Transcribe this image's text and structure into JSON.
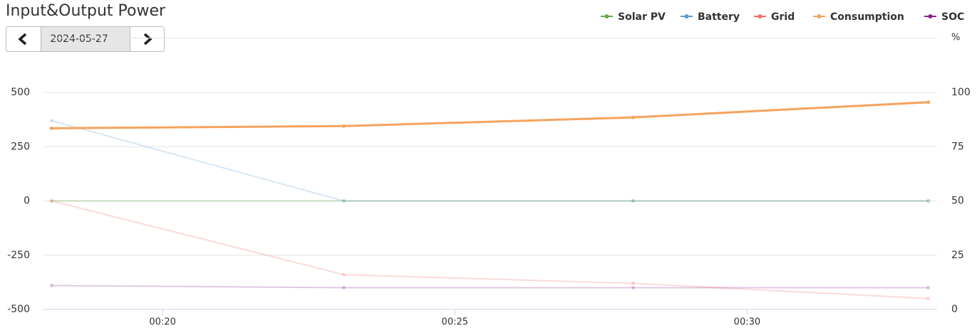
{
  "chart_data": {
    "type": "line",
    "title": "Input&Output Power",
    "date": "2024-05-27",
    "x": [
      18.1,
      23.1,
      28.05,
      33.1
    ],
    "xlim": [
      17.95,
      33.25
    ],
    "xticks": [
      {
        "value": 20,
        "label": "00:20"
      },
      {
        "value": 25,
        "label": "00:25"
      },
      {
        "value": 30,
        "label": "00:30"
      }
    ],
    "ylim": [
      -500,
      750
    ],
    "yticks": [
      -500,
      -250,
      0,
      250,
      500
    ],
    "y2lim": [
      0,
      125
    ],
    "y2ticks": [
      0,
      25,
      50,
      75,
      100
    ],
    "y2label": "%",
    "grid": true,
    "legend": "top-right",
    "series": [
      {
        "name": "Solar PV",
        "color": "#6aa84f",
        "opacity": 0.3,
        "values": [
          0,
          0,
          0,
          0
        ]
      },
      {
        "name": "Battery",
        "color": "#5b9bd5",
        "opacity": 0.25,
        "values": [
          370,
          0,
          0,
          0
        ]
      },
      {
        "name": "Grid",
        "color": "#f06a6a",
        "opacity": 0.25,
        "values": [
          0,
          -340,
          -380,
          -450
        ]
      },
      {
        "name": "Consumption",
        "color": "#f7a35c",
        "opacity": 1,
        "values": [
          335,
          345,
          385,
          455
        ]
      },
      {
        "name": "SOC",
        "color": "#8e1f8e",
        "opacity": 0.25,
        "axis": "y2",
        "values": [
          11,
          10,
          10,
          10
        ]
      }
    ]
  }
}
